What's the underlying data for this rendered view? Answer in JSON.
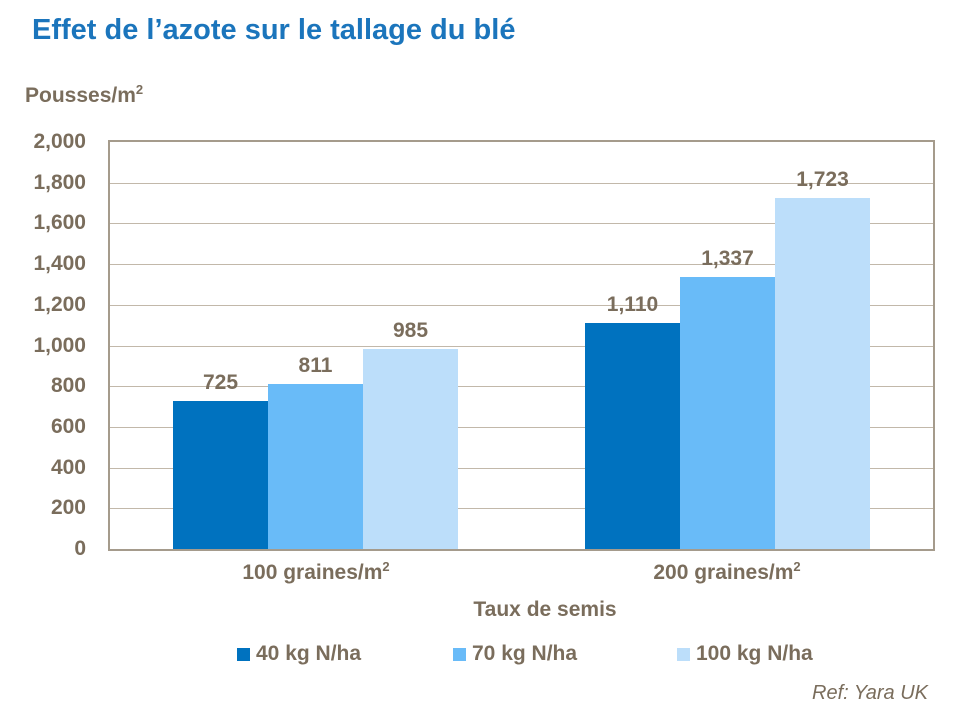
{
  "slide": {
    "ref_note": "Ref: Yara UK"
  },
  "colors": {
    "title": "#1B75BC",
    "text": "#7A6D5C",
    "grid": "#C2B8AA",
    "border": "#A59B8C",
    "background": "#FFFFFF"
  },
  "chart_data": {
    "type": "bar",
    "title": "Effet de l’azote sur le tallage du blé",
    "y_axis_unit": {
      "base": "Pousses/m",
      "sup": "2"
    },
    "xlabel": "Taux de semis",
    "ylim": [
      0,
      2000
    ],
    "y_tick_step": 200,
    "y_tick_labels": [
      "0",
      "200",
      "400",
      "600",
      "800",
      "1,000",
      "1,200",
      "1,400",
      "1,600",
      "1,800",
      "2,000"
    ],
    "grid": true,
    "legend_position": "bottom",
    "categories": [
      {
        "base": "100 graines/m",
        "sup": "2"
      },
      {
        "base": "200 graines/m",
        "sup": "2"
      }
    ],
    "series": [
      {
        "name": "40 kg N/ha",
        "color": "#0072BF",
        "values": [
          725,
          1110
        ],
        "labels": [
          "725",
          "1,110"
        ]
      },
      {
        "name": "70 kg N/ha",
        "color": "#69BBF8",
        "values": [
          811,
          1337
        ],
        "labels": [
          "811",
          "1,337"
        ]
      },
      {
        "name": "100 kg N/ha",
        "color": "#BCDEFA",
        "values": [
          985,
          1723
        ],
        "labels": [
          "985",
          "1,723"
        ]
      }
    ]
  }
}
